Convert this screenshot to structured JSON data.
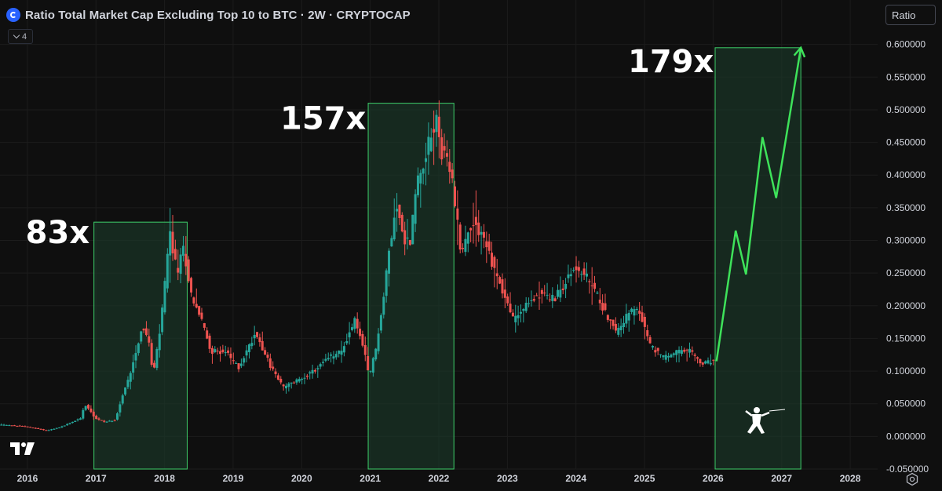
{
  "header": {
    "title": "Ratio Total Market Cap Excluding Top 10 to BTC · 2W · CRYPTOCAP",
    "indicators_count": "4",
    "scale_mode": "Ratio"
  },
  "icons": {
    "symbol": "cryptocap-logo-icon",
    "collapse": "chevron-down-icon",
    "brand": "tradingview-logo-icon",
    "settings": "gear-icon",
    "mascot": "fencer-icon"
  },
  "colors": {
    "background": "#0f0f0f",
    "up_candle": "#26a69a",
    "down_candle": "#ef5350",
    "highlight_box_fill": "#1b3a2a",
    "highlight_box_border": "#3ecf6a",
    "projection_line": "#3ee25a",
    "annotation_text": "#ffffff"
  },
  "chart_data": {
    "type": "candlestick",
    "title": "Ratio Total Market Cap Excluding Top 10 to BTC · 2W · CRYPTOCAP",
    "xlabel": "",
    "ylabel": "",
    "x_ticks": [
      "2016",
      "2017",
      "2018",
      "2019",
      "2020",
      "2021",
      "2022",
      "2023",
      "2024",
      "2025",
      "2026",
      "2027",
      "2028"
    ],
    "y_ticks": [
      "0.600000",
      "0.550000",
      "0.500000",
      "0.450000",
      "0.400000",
      "0.350000",
      "0.300000",
      "0.250000",
      "0.200000",
      "0.150000",
      "0.100000",
      "0.050000",
      "0.000000",
      "-0.050000"
    ],
    "ylim": [
      -0.05,
      0.62
    ],
    "xlim": [
      2015.6,
      2028.4
    ],
    "y_scale": "linear",
    "grid": true,
    "anchors": [
      [
        2015.6,
        0.018
      ],
      [
        2016.0,
        0.015
      ],
      [
        2016.3,
        0.009
      ],
      [
        2016.5,
        0.014
      ],
      [
        2016.8,
        0.028
      ],
      [
        2016.85,
        0.05
      ],
      [
        2016.95,
        0.038
      ],
      [
        2017.0,
        0.028
      ],
      [
        2017.15,
        0.022
      ],
      [
        2017.3,
        0.025
      ],
      [
        2017.4,
        0.06
      ],
      [
        2017.5,
        0.09
      ],
      [
        2017.6,
        0.13
      ],
      [
        2017.7,
        0.17
      ],
      [
        2017.8,
        0.14
      ],
      [
        2017.85,
        0.09
      ],
      [
        2017.95,
        0.16
      ],
      [
        2018.05,
        0.26
      ],
      [
        2018.1,
        0.31
      ],
      [
        2018.2,
        0.25
      ],
      [
        2018.3,
        0.29
      ],
      [
        2018.4,
        0.22
      ],
      [
        2018.55,
        0.18
      ],
      [
        2018.7,
        0.13
      ],
      [
        2018.9,
        0.13
      ],
      [
        2019.1,
        0.105
      ],
      [
        2019.35,
        0.16
      ],
      [
        2019.55,
        0.11
      ],
      [
        2019.75,
        0.075
      ],
      [
        2020.0,
        0.088
      ],
      [
        2020.2,
        0.1
      ],
      [
        2020.4,
        0.12
      ],
      [
        2020.6,
        0.13
      ],
      [
        2020.8,
        0.18
      ],
      [
        2020.95,
        0.12
      ],
      [
        2021.0,
        0.09
      ],
      [
        2021.1,
        0.135
      ],
      [
        2021.2,
        0.2
      ],
      [
        2021.3,
        0.29
      ],
      [
        2021.4,
        0.36
      ],
      [
        2021.5,
        0.3
      ],
      [
        2021.6,
        0.3
      ],
      [
        2021.7,
        0.39
      ],
      [
        2021.85,
        0.44
      ],
      [
        2022.0,
        0.49
      ],
      [
        2022.05,
        0.44
      ],
      [
        2022.2,
        0.4
      ],
      [
        2022.35,
        0.28
      ],
      [
        2022.5,
        0.33
      ],
      [
        2022.65,
        0.31
      ],
      [
        2022.85,
        0.25
      ],
      [
        2023.1,
        0.18
      ],
      [
        2023.3,
        0.2
      ],
      [
        2023.5,
        0.22
      ],
      [
        2023.7,
        0.21
      ],
      [
        2023.9,
        0.24
      ],
      [
        2024.0,
        0.26
      ],
      [
        2024.2,
        0.24
      ],
      [
        2024.4,
        0.2
      ],
      [
        2024.6,
        0.16
      ],
      [
        2024.8,
        0.19
      ],
      [
        2024.95,
        0.19
      ],
      [
        2025.1,
        0.14
      ],
      [
        2025.3,
        0.12
      ],
      [
        2025.5,
        0.13
      ],
      [
        2025.7,
        0.13
      ],
      [
        2025.85,
        0.11
      ],
      [
        2026.0,
        0.115
      ]
    ],
    "annotations": [
      {
        "label": "83x",
        "x_start": 2016.97,
        "x_end": 2018.33,
        "y_top": 0.328,
        "y_bottom": -0.05
      },
      {
        "label": "157x",
        "x_start": 2020.97,
        "x_end": 2022.22,
        "y_top": 0.51,
        "y_bottom": -0.05
      },
      {
        "label": "179x",
        "x_start": 2026.03,
        "x_end": 2027.28,
        "y_top": 0.595,
        "y_bottom": -0.05
      }
    ],
    "projection": [
      [
        2026.05,
        0.115
      ],
      [
        2026.33,
        0.315
      ],
      [
        2026.48,
        0.248
      ],
      [
        2026.72,
        0.458
      ],
      [
        2026.92,
        0.365
      ],
      [
        2027.28,
        0.595
      ]
    ]
  }
}
